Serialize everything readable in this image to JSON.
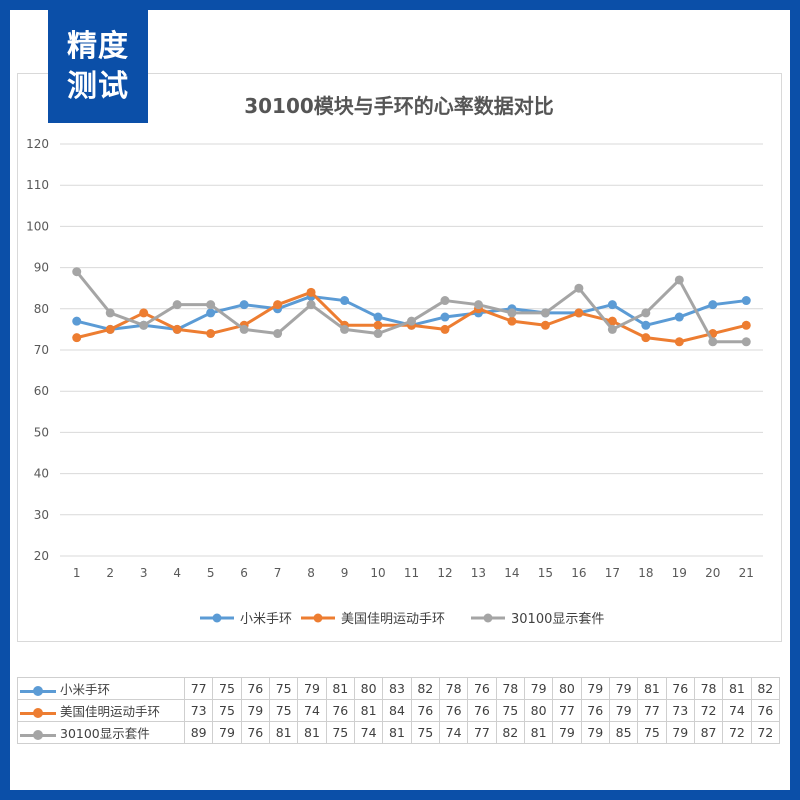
{
  "badge": {
    "line1": "精度",
    "line2": "测试"
  },
  "chart_data": {
    "type": "line",
    "title": "30100模块与手环的心率数据对比",
    "categories": [
      "1",
      "2",
      "3",
      "4",
      "5",
      "6",
      "7",
      "8",
      "9",
      "10",
      "11",
      "12",
      "13",
      "14",
      "15",
      "16",
      "17",
      "18",
      "19",
      "20",
      "21"
    ],
    "ylim": [
      20,
      120
    ],
    "yticks": [
      20,
      30,
      40,
      50,
      60,
      70,
      80,
      90,
      100,
      110,
      120
    ],
    "grid": true,
    "legend": "bottom",
    "series": [
      {
        "name": "小米手环",
        "color": "#5b9bd5",
        "values": [
          77,
          75,
          76,
          75,
          79,
          81,
          80,
          83,
          82,
          78,
          76,
          78,
          79,
          80,
          79,
          79,
          81,
          76,
          78,
          81,
          82
        ]
      },
      {
        "name": "美国佳明运动手环",
        "color": "#ed7d31",
        "values": [
          73,
          75,
          79,
          75,
          74,
          76,
          81,
          84,
          76,
          76,
          76,
          75,
          80,
          77,
          76,
          79,
          77,
          73,
          72,
          74,
          76
        ]
      },
      {
        "name": "30100显示套件",
        "color": "#a5a5a5",
        "values": [
          89,
          79,
          76,
          81,
          81,
          75,
          74,
          81,
          75,
          74,
          77,
          82,
          81,
          79,
          79,
          85,
          75,
          79,
          87,
          72,
          72
        ]
      }
    ]
  }
}
